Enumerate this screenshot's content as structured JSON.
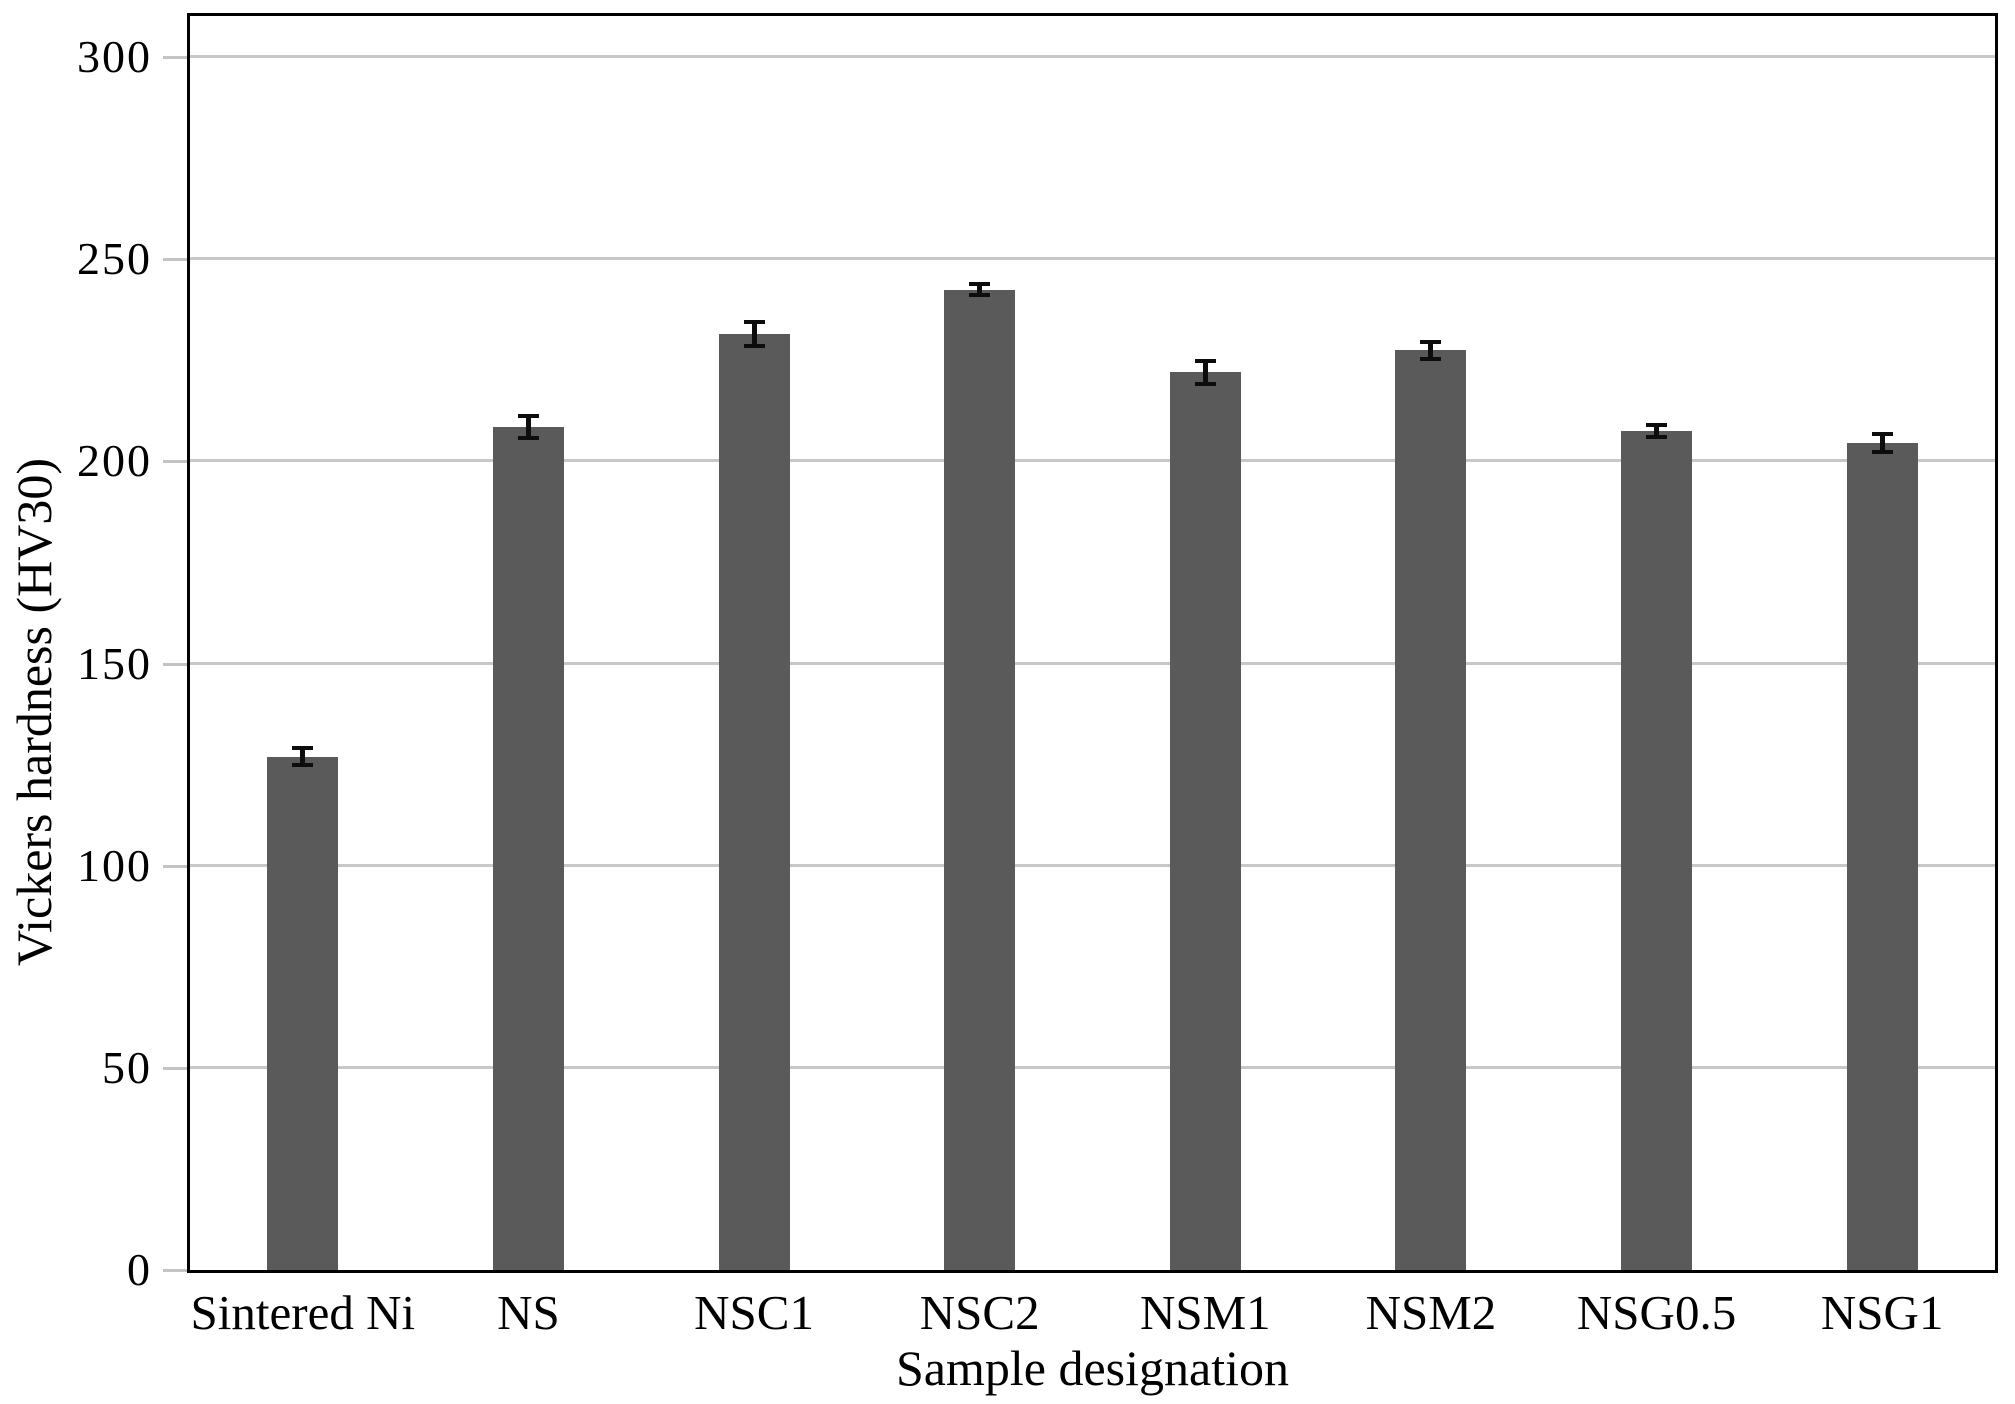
{
  "chart_data": {
    "type": "bar",
    "title": "",
    "categories": [
      "Sintered Ni",
      "NS",
      "NSC1",
      "NSC2",
      "NSM1",
      "NSM2",
      "NSG0.5",
      "NSG1"
    ],
    "values": [
      127,
      208.5,
      231.5,
      242.5,
      222,
      227.5,
      207.5,
      204.5
    ],
    "error_bars": [
      2,
      2.7,
      3,
      1.4,
      2.9,
      2.1,
      1.4,
      2.3
    ],
    "xlabel": "Sample designation",
    "ylabel": "Vickers hardness (HV30)",
    "ylim": [
      0,
      300
    ],
    "yticks": [
      0,
      50,
      100,
      150,
      200,
      250,
      300
    ],
    "grid": "horizontal",
    "legend": "none",
    "colors": {
      "bar": "#5a5a5a",
      "gridline": "#c8c8c8",
      "axis": "#000000",
      "error_bar": "#0d0d0d",
      "background": "#ffffff"
    }
  }
}
